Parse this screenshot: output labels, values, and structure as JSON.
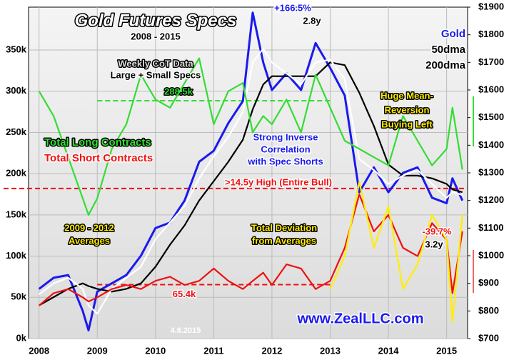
{
  "chart_data": {
    "type": "line",
    "title": "Gold Futures Specs",
    "subtitle": "2008 - 2015",
    "x": [
      2008.0,
      2008.25,
      2008.5,
      2008.75,
      2008.85,
      2009.0,
      2009.25,
      2009.5,
      2009.75,
      2010.0,
      2010.25,
      2010.5,
      2010.75,
      2011.0,
      2011.25,
      2011.5,
      2011.67,
      2011.85,
      2012.0,
      2012.25,
      2012.5,
      2012.75,
      2013.0,
      2013.25,
      2013.5,
      2013.75,
      2014.0,
      2014.25,
      2014.5,
      2014.75,
      2015.0,
      2015.1,
      2015.27
    ],
    "xlim": [
      2007.82,
      2015.36
    ],
    "xticks": [
      2008,
      2009,
      2010,
      2011,
      2012,
      2013,
      2014,
      2015
    ],
    "ylim": [
      0,
      402
    ],
    "yticks": [
      {
        "value": 0,
        "label": "0k"
      },
      {
        "value": 50,
        "label": "50k"
      },
      {
        "value": 100,
        "label": "100k"
      },
      {
        "value": 150,
        "label": "150k"
      },
      {
        "value": 200,
        "label": "200k"
      },
      {
        "value": 250,
        "label": "250k"
      },
      {
        "value": 300,
        "label": "300k"
      },
      {
        "value": 350,
        "label": "350k"
      }
    ],
    "y2lim": [
      700,
      1900
    ],
    "y2ticks": [
      {
        "value": 700,
        "label": "$700"
      },
      {
        "value": 800,
        "label": "$800"
      },
      {
        "value": 900,
        "label": "$900"
      },
      {
        "value": 1000,
        "label": "$1000"
      },
      {
        "value": 1100,
        "label": "$1100"
      },
      {
        "value": 1200,
        "label": "$1200"
      },
      {
        "value": 1300,
        "label": "$1300"
      },
      {
        "value": 1400,
        "label": "$1400"
      },
      {
        "value": 1500,
        "label": "$1500"
      },
      {
        "value": 1600,
        "label": "$1600"
      },
      {
        "value": 1700,
        "label": "$1700"
      },
      {
        "value": 1800,
        "label": "$1800"
      },
      {
        "value": 1900,
        "label": "$1900"
      }
    ],
    "grid": true,
    "series": [
      {
        "name": "Gold",
        "color": "#1a1aee",
        "axis": "y2",
        "values": [
          880,
          920,
          930,
          800,
          730,
          870,
          900,
          930,
          1000,
          1100,
          1120,
          1200,
          1340,
          1380,
          1480,
          1560,
          1880,
          1700,
          1600,
          1660,
          1600,
          1770,
          1680,
          1580,
          1230,
          1320,
          1230,
          1300,
          1320,
          1210,
          1190,
          1280,
          1200
        ]
      },
      {
        "name": "200dma",
        "color": "#000000",
        "axis": "y2",
        "values": [
          820,
          850,
          880,
          900,
          890,
          880,
          870,
          880,
          900,
          960,
          1040,
          1110,
          1200,
          1270,
          1340,
          1420,
          1530,
          1620,
          1650,
          1650,
          1650,
          1650,
          1700,
          1690,
          1590,
          1470,
          1330,
          1290,
          1290,
          1280,
          1260,
          1240,
          1230
        ]
      },
      {
        "name": "50dma",
        "color": "#ffffff",
        "axis": "y2",
        "values": [
          860,
          900,
          920,
          880,
          820,
          790,
          880,
          920,
          960,
          1060,
          1120,
          1180,
          1280,
          1360,
          1430,
          1520,
          1700,
          1750,
          1700,
          1660,
          1620,
          1700,
          1710,
          1640,
          1350,
          1310,
          1260,
          1290,
          1310,
          1260,
          1210,
          1230,
          1220
        ]
      },
      {
        "name": "Total Long Contracts",
        "color": "#33dd33",
        "values": [
          300,
          270,
          220,
          170,
          150,
          170,
          230,
          260,
          320,
          290,
          280,
          310,
          340,
          260,
          300,
          310,
          250,
          270,
          260,
          290,
          250,
          320,
          280,
          240,
          230,
          220,
          210,
          270,
          240,
          210,
          230,
          280,
          205
        ]
      },
      {
        "name": "Total Short Contracts",
        "color": "#ee1111",
        "values": [
          40,
          55,
          60,
          50,
          45,
          50,
          60,
          65,
          60,
          70,
          75,
          65,
          70,
          85,
          70,
          60,
          70,
          80,
          65,
          90,
          85,
          60,
          70,
          110,
          175,
          130,
          150,
          110,
          100,
          140,
          120,
          55,
          130
        ]
      },
      {
        "color": "#ffee00",
        "values": [
          null,
          null,
          null,
          null,
          null,
          null,
          null,
          null,
          null,
          null,
          null,
          null,
          null,
          null,
          null,
          null,
          null,
          null,
          null,
          null,
          null,
          null,
          60,
          100,
          190,
          110,
          160,
          60,
          90,
          150,
          120,
          20,
          150
        ]
      }
    ],
    "reference_lines": [
      {
        "value": 288.5,
        "label": "288.5k",
        "color": "#33dd33"
      },
      {
        "value": 65.4,
        "label": "65.4k",
        "color": "#ee1111"
      },
      {
        "value": 182,
        "label": ">14.5y High (Entire Bull)",
        "color": "#ee1111"
      }
    ],
    "annotations": [
      "Weekly CoT Data",
      "Large + Small Specs",
      "2009 - 2012",
      "Averages",
      "Strong Inverse",
      "Correlation",
      "with Spec Shorts",
      "+166.5%",
      "2.8y",
      "Huge Mean-",
      "Reversion",
      "Buying Left",
      "Total Deviation",
      "from Averages",
      "-39.7%",
      "3.2y",
      "www.ZealLLC.com",
      "4.8.2015"
    ]
  }
}
